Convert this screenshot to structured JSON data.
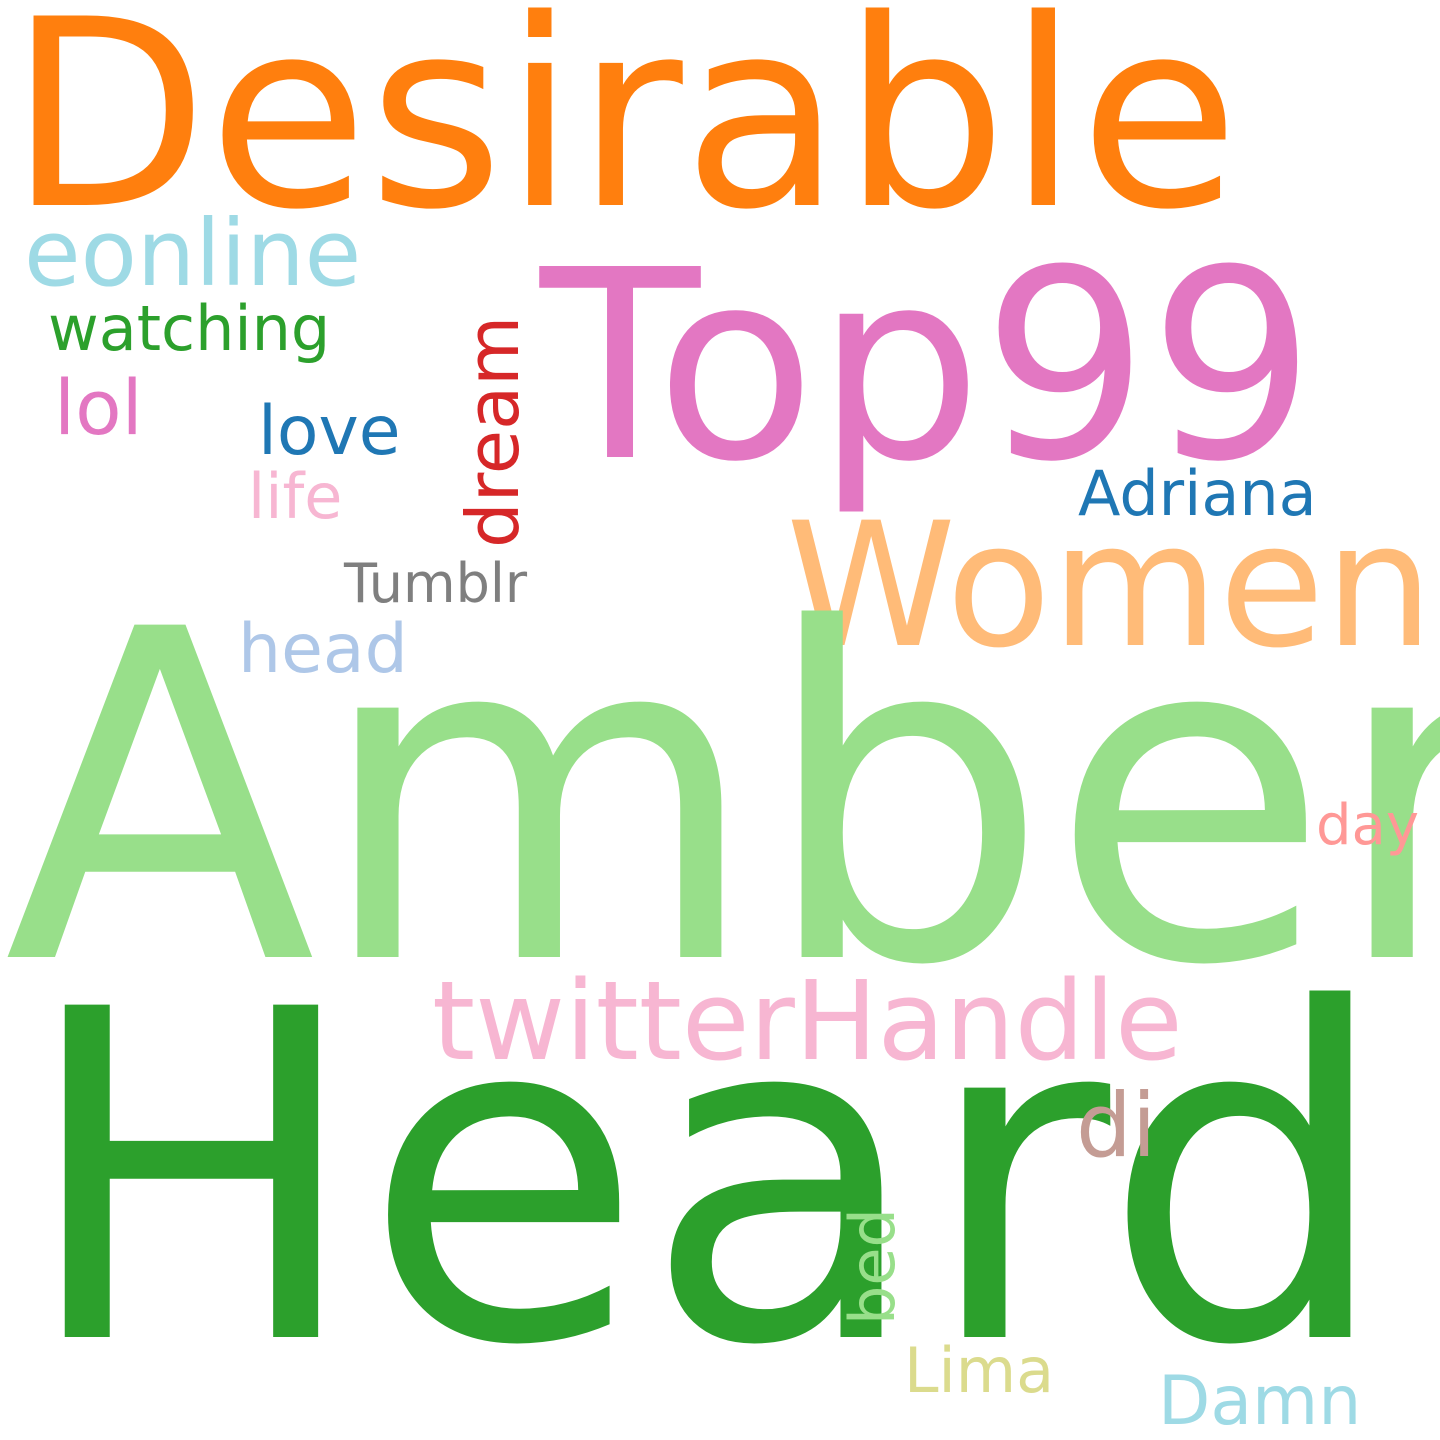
{
  "words": {
    "desirable": {
      "text": "Desirable",
      "color": "#ff7f0e"
    },
    "top99": {
      "text": "Top99",
      "color": "#e377c2"
    },
    "eonline": {
      "text": "eonline",
      "color": "#9edae5"
    },
    "watching": {
      "text": "watching",
      "color": "#2ca02c"
    },
    "lol": {
      "text": "lol",
      "color": "#e377c2"
    },
    "love": {
      "text": "love",
      "color": "#1f77b4"
    },
    "life": {
      "text": "life",
      "color": "#f7b6d2"
    },
    "dream": {
      "text": "dream",
      "color": "#d62728"
    },
    "adriana": {
      "text": "Adriana",
      "color": "#1f77b4"
    },
    "women": {
      "text": "Women",
      "color": "#ffbb78"
    },
    "tumblr": {
      "text": "Tumblr",
      "color": "#7f7f7f"
    },
    "head": {
      "text": "head",
      "color": "#aec7e8"
    },
    "amber": {
      "text": "Amber",
      "color": "#98df8a"
    },
    "day": {
      "text": "day",
      "color": "#ff9896"
    },
    "twitterhandle": {
      "text": "twitterHandle",
      "color": "#f7b6d2"
    },
    "heard": {
      "text": "Heard",
      "color": "#2ca02c"
    },
    "di": {
      "text": "di",
      "color": "#c49c94"
    },
    "bed": {
      "text": "bed",
      "color": "#98df8a"
    },
    "lima": {
      "text": "Lima",
      "color": "#dbdb8d"
    },
    "damn": {
      "text": "Damn",
      "color": "#9edae5"
    }
  }
}
